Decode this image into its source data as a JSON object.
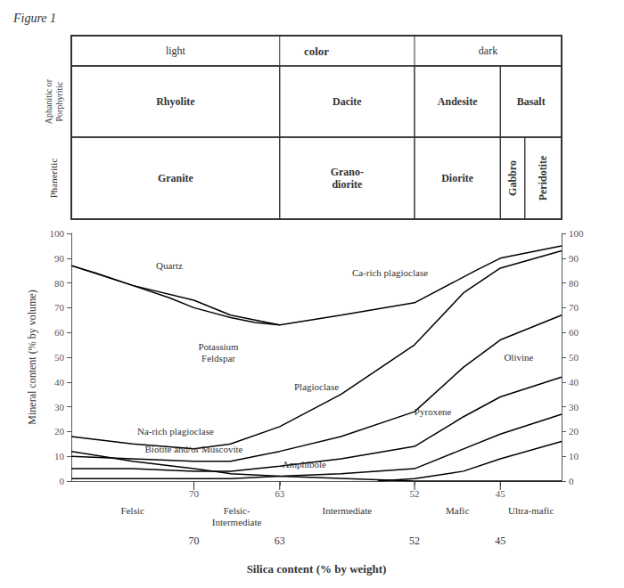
{
  "chart_data": {
    "type": "line",
    "title": "Figure 1",
    "xlabel": "Silica content (% by weight)",
    "ylabel": "Mineral content (% by volume)",
    "xlim": [
      80,
      40
    ],
    "ylim": [
      0,
      100
    ],
    "xticks": [
      70,
      63,
      52,
      45
    ],
    "yticks": [
      0,
      10,
      20,
      30,
      40,
      50,
      60,
      70,
      80,
      90,
      100
    ],
    "y2lim": [
      0,
      100
    ],
    "y2ticks": [
      0,
      10,
      20,
      30,
      40,
      50,
      60,
      70,
      80,
      90,
      100
    ],
    "grid": false,
    "series": [
      {
        "color": "#000000",
        "x": [
          80,
          78,
          75,
          72,
          70,
          67,
          65,
          63
        ],
        "values": [
          87,
          84,
          79,
          74,
          70,
          66,
          64,
          63
        ]
      },
      {
        "color": "#000000",
        "x": [
          80,
          75,
          70,
          67,
          63,
          52,
          45,
          40
        ],
        "values": [
          12,
          8,
          5,
          3,
          2,
          0,
          0,
          0
        ]
      },
      {
        "color": "#000000",
        "x": [
          80,
          75,
          70,
          67,
          63,
          58,
          52,
          47,
          45,
          40
        ],
        "values": [
          87,
          79,
          73,
          67,
          63,
          67,
          72,
          85,
          90,
          95
        ]
      },
      {
        "color": "#000000",
        "x": [
          80,
          75,
          70,
          67,
          63,
          58,
          52,
          48,
          45,
          40
        ],
        "values": [
          18,
          15,
          13,
          15,
          22,
          35,
          55,
          76,
          86,
          93
        ]
      },
      {
        "color": "#000000",
        "x": [
          80,
          75,
          70,
          67,
          63,
          58,
          52,
          48,
          45,
          40
        ],
        "values": [
          10,
          9,
          8,
          8,
          12,
          18,
          28,
          46,
          57,
          67
        ]
      },
      {
        "color": "#000000",
        "x": [
          80,
          75,
          70,
          67,
          63,
          58,
          52,
          48,
          45,
          40
        ],
        "values": [
          5,
          5,
          4,
          4,
          6,
          9,
          14,
          26,
          34,
          42
        ]
      },
      {
        "color": "#000000",
        "x": [
          80,
          75,
          70,
          67,
          63,
          58,
          52,
          48,
          45,
          40
        ],
        "values": [
          1,
          1,
          1,
          1,
          2,
          3,
          5,
          13,
          19,
          27
        ]
      },
      {
        "color": "#000000",
        "x": [
          55,
          52,
          48,
          45,
          40
        ],
        "values": [
          0,
          1,
          4,
          9,
          16
        ]
      }
    ],
    "annotations": [
      {
        "text": "Quartz",
        "x": 72,
        "y": 87
      },
      {
        "text": "Potassium\nFeldspar",
        "x": 68,
        "y": 52
      },
      {
        "text": "Plagioclase",
        "x": 60,
        "y": 38
      },
      {
        "text": "Ca-rich plagioclase",
        "x": 54,
        "y": 84
      },
      {
        "text": "Na-rich plagioclase",
        "x": 71.5,
        "y": 20
      },
      {
        "text": "Biotite and/or Muscovite",
        "x": 70,
        "y": 13
      },
      {
        "text": "Amphibole",
        "x": 61,
        "y": 7
      },
      {
        "text": "Pyroxene",
        "x": 50.5,
        "y": 28
      },
      {
        "text": "Olivine",
        "x": 43.5,
        "y": 50
      }
    ],
    "category_labels": [
      "Felsic",
      "Felsic-\nIntermediate",
      "Intermediate",
      "Mafic",
      "Ultra-mafic"
    ],
    "category_x": [
      75,
      66.5,
      57.5,
      48.5,
      42.5
    ],
    "category_tick_x": [
      70,
      63,
      52,
      45
    ],
    "category_dividers": [
      70,
      63,
      52,
      45
    ],
    "header": {
      "boundaries": [
        80,
        63,
        52,
        45,
        40
      ],
      "gabbro_split": 43,
      "color_title": "color",
      "color_left": "light",
      "color_right": "dark",
      "aphanitic_label": "Aphanitic or\nPorphyritic",
      "aphanitic_rocks": [
        "Rhyolite",
        "Dacite",
        "Andesite",
        "Basalt"
      ],
      "phaneritic_label": "Phaneritic",
      "phaneritic_rocks": [
        "Granite",
        "Grano-\ndiorite",
        "Diorite",
        "Gabbro",
        "Peridotite"
      ]
    }
  }
}
